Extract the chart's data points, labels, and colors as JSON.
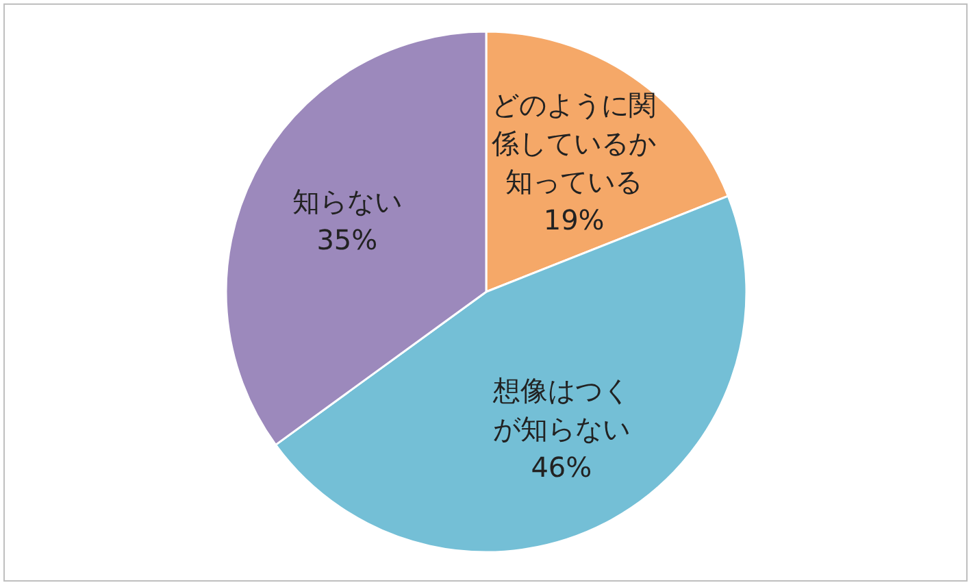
{
  "chart_data": {
    "type": "pie",
    "categories": [
      "どのように関係しているか知っている",
      "想像はつくが知らない",
      "知らない"
    ],
    "values": [
      19,
      46,
      35
    ],
    "value_labels": [
      "19%",
      "46%",
      "35%"
    ],
    "colors": [
      "#f5a868",
      "#74bfd6",
      "#9c89bc"
    ],
    "legend": false
  }
}
